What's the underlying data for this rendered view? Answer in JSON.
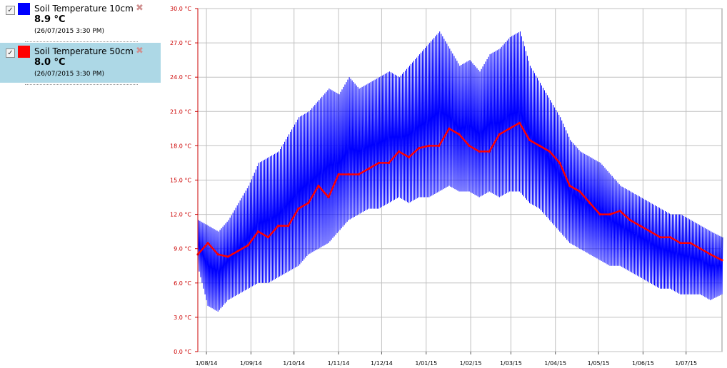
{
  "legend": {
    "items": [
      {
        "name": "Soil Temperature 10cm",
        "value": "8.9 °C",
        "timestamp": "(26/07/2015 3:30 PM)",
        "color": "#0000ff",
        "checked": "✓"
      },
      {
        "name": "Soil Temperature 50cm",
        "value": "8.0 °C",
        "timestamp": "(26/07/2015 3:30 PM)",
        "color": "#ff0000",
        "checked": "✓"
      }
    ]
  },
  "chart_data": {
    "type": "line",
    "title": "",
    "xlabel": "",
    "ylabel": "",
    "ylim": [
      0,
      30
    ],
    "y_ticks": [
      "0.0 °C",
      "3.0 °C",
      "6.0 °C",
      "9.0 °C",
      "12.0 °C",
      "15.0 °C",
      "18.0 °C",
      "21.0 °C",
      "24.0 °C",
      "27.0 °C",
      "30.0 °C"
    ],
    "xlim": [
      "2014-07-26",
      "2015-07-26"
    ],
    "x_ticks": [
      {
        "date": "2014-08-01",
        "label": "1/08/14"
      },
      {
        "date": "2014-09-01",
        "label": "1/09/14"
      },
      {
        "date": "2014-10-01",
        "label": "1/10/14"
      },
      {
        "date": "2014-11-01",
        "label": "1/11/14"
      },
      {
        "date": "2014-12-01",
        "label": "1/12/14"
      },
      {
        "date": "2015-01-01",
        "label": "1/01/15"
      },
      {
        "date": "2015-02-01",
        "label": "1/02/15"
      },
      {
        "date": "2015-03-01",
        "label": "1/03/15"
      },
      {
        "date": "2015-04-01",
        "label": "1/04/15"
      },
      {
        "date": "2015-05-01",
        "label": "1/05/15"
      },
      {
        "date": "2015-06-01",
        "label": "1/06/15"
      },
      {
        "date": "2015-07-01",
        "label": "1/07/15"
      }
    ],
    "grid": true,
    "series": [
      {
        "name": "Soil Temperature 10cm",
        "color": "#0000ff",
        "style": "daily-range",
        "x": [
          "2014-07-26",
          "2014-08-02",
          "2014-08-09",
          "2014-08-16",
          "2014-08-23",
          "2014-08-30",
          "2014-09-06",
          "2014-09-13",
          "2014-09-20",
          "2014-09-27",
          "2014-10-04",
          "2014-10-11",
          "2014-10-18",
          "2014-10-25",
          "2014-11-01",
          "2014-11-08",
          "2014-11-15",
          "2014-11-22",
          "2014-11-29",
          "2014-12-06",
          "2014-12-13",
          "2014-12-20",
          "2014-12-27",
          "2015-01-03",
          "2015-01-10",
          "2015-01-17",
          "2015-01-24",
          "2015-01-31",
          "2015-02-07",
          "2015-02-14",
          "2015-02-21",
          "2015-02-28",
          "2015-03-07",
          "2015-03-14",
          "2015-03-21",
          "2015-03-28",
          "2015-04-04",
          "2015-04-11",
          "2015-04-18",
          "2015-04-25",
          "2015-05-02",
          "2015-05-09",
          "2015-05-16",
          "2015-05-23",
          "2015-05-30",
          "2015-06-06",
          "2015-06-13",
          "2015-06-20",
          "2015-06-27",
          "2015-07-04",
          "2015-07-11",
          "2015-07-18",
          "2015-07-26"
        ],
        "min": [
          7.5,
          4.0,
          3.5,
          4.5,
          5.0,
          5.5,
          6.0,
          6.0,
          6.5,
          7.0,
          7.5,
          8.5,
          9.0,
          9.5,
          10.5,
          11.5,
          12.0,
          12.5,
          12.5,
          13.0,
          13.5,
          13.0,
          13.5,
          13.5,
          14.0,
          14.5,
          14.0,
          14.0,
          13.5,
          14.0,
          13.5,
          14.0,
          14.0,
          13.0,
          12.5,
          11.5,
          10.5,
          9.5,
          9.0,
          8.5,
          8.0,
          7.5,
          7.5,
          7.0,
          6.5,
          6.0,
          5.5,
          5.5,
          5.0,
          5.0,
          5.0,
          4.5,
          5.0
        ],
        "max": [
          11.5,
          11.0,
          10.5,
          11.5,
          13.0,
          14.5,
          16.5,
          17.0,
          17.5,
          19.0,
          20.5,
          21.0,
          22.0,
          23.0,
          22.5,
          24.0,
          23.0,
          23.5,
          24.0,
          24.5,
          24.0,
          25.0,
          26.0,
          27.0,
          28.0,
          26.5,
          25.0,
          25.5,
          24.5,
          26.0,
          26.5,
          27.5,
          28.0,
          25.0,
          23.5,
          22.0,
          20.5,
          18.5,
          17.5,
          17.0,
          16.5,
          15.5,
          14.5,
          14.0,
          13.5,
          13.0,
          12.5,
          12.0,
          12.0,
          11.5,
          11.0,
          10.5,
          10.0
        ]
      },
      {
        "name": "Soil Temperature 50cm",
        "color": "#ff0000",
        "style": "line",
        "x": [
          "2014-07-26",
          "2014-08-02",
          "2014-08-09",
          "2014-08-16",
          "2014-08-23",
          "2014-08-30",
          "2014-09-06",
          "2014-09-13",
          "2014-09-20",
          "2014-09-27",
          "2014-10-04",
          "2014-10-11",
          "2014-10-18",
          "2014-10-25",
          "2014-11-01",
          "2014-11-08",
          "2014-11-15",
          "2014-11-22",
          "2014-11-29",
          "2014-12-06",
          "2014-12-13",
          "2014-12-20",
          "2014-12-27",
          "2015-01-03",
          "2015-01-10",
          "2015-01-17",
          "2015-01-24",
          "2015-01-31",
          "2015-02-07",
          "2015-02-14",
          "2015-02-21",
          "2015-02-28",
          "2015-03-07",
          "2015-03-14",
          "2015-03-21",
          "2015-03-28",
          "2015-04-04",
          "2015-04-11",
          "2015-04-18",
          "2015-04-25",
          "2015-05-02",
          "2015-05-09",
          "2015-05-16",
          "2015-05-23",
          "2015-05-30",
          "2015-06-06",
          "2015-06-13",
          "2015-06-20",
          "2015-06-27",
          "2015-07-04",
          "2015-07-11",
          "2015-07-18",
          "2015-07-26"
        ],
        "values": [
          8.5,
          9.5,
          8.5,
          8.3,
          8.8,
          9.3,
          10.5,
          10.0,
          11.0,
          11.0,
          12.5,
          13.0,
          14.5,
          13.5,
          15.5,
          15.5,
          15.5,
          16.0,
          16.5,
          16.5,
          17.5,
          17.0,
          17.8,
          18.0,
          18.0,
          19.5,
          19.0,
          18.0,
          17.5,
          17.5,
          19.0,
          19.5,
          20.0,
          18.5,
          18.0,
          17.5,
          16.5,
          14.5,
          14.0,
          13.0,
          12.0,
          12.0,
          12.3,
          11.5,
          11.0,
          10.5,
          10.0,
          10.0,
          9.5,
          9.5,
          9.0,
          8.5,
          8.0
        ]
      }
    ]
  }
}
